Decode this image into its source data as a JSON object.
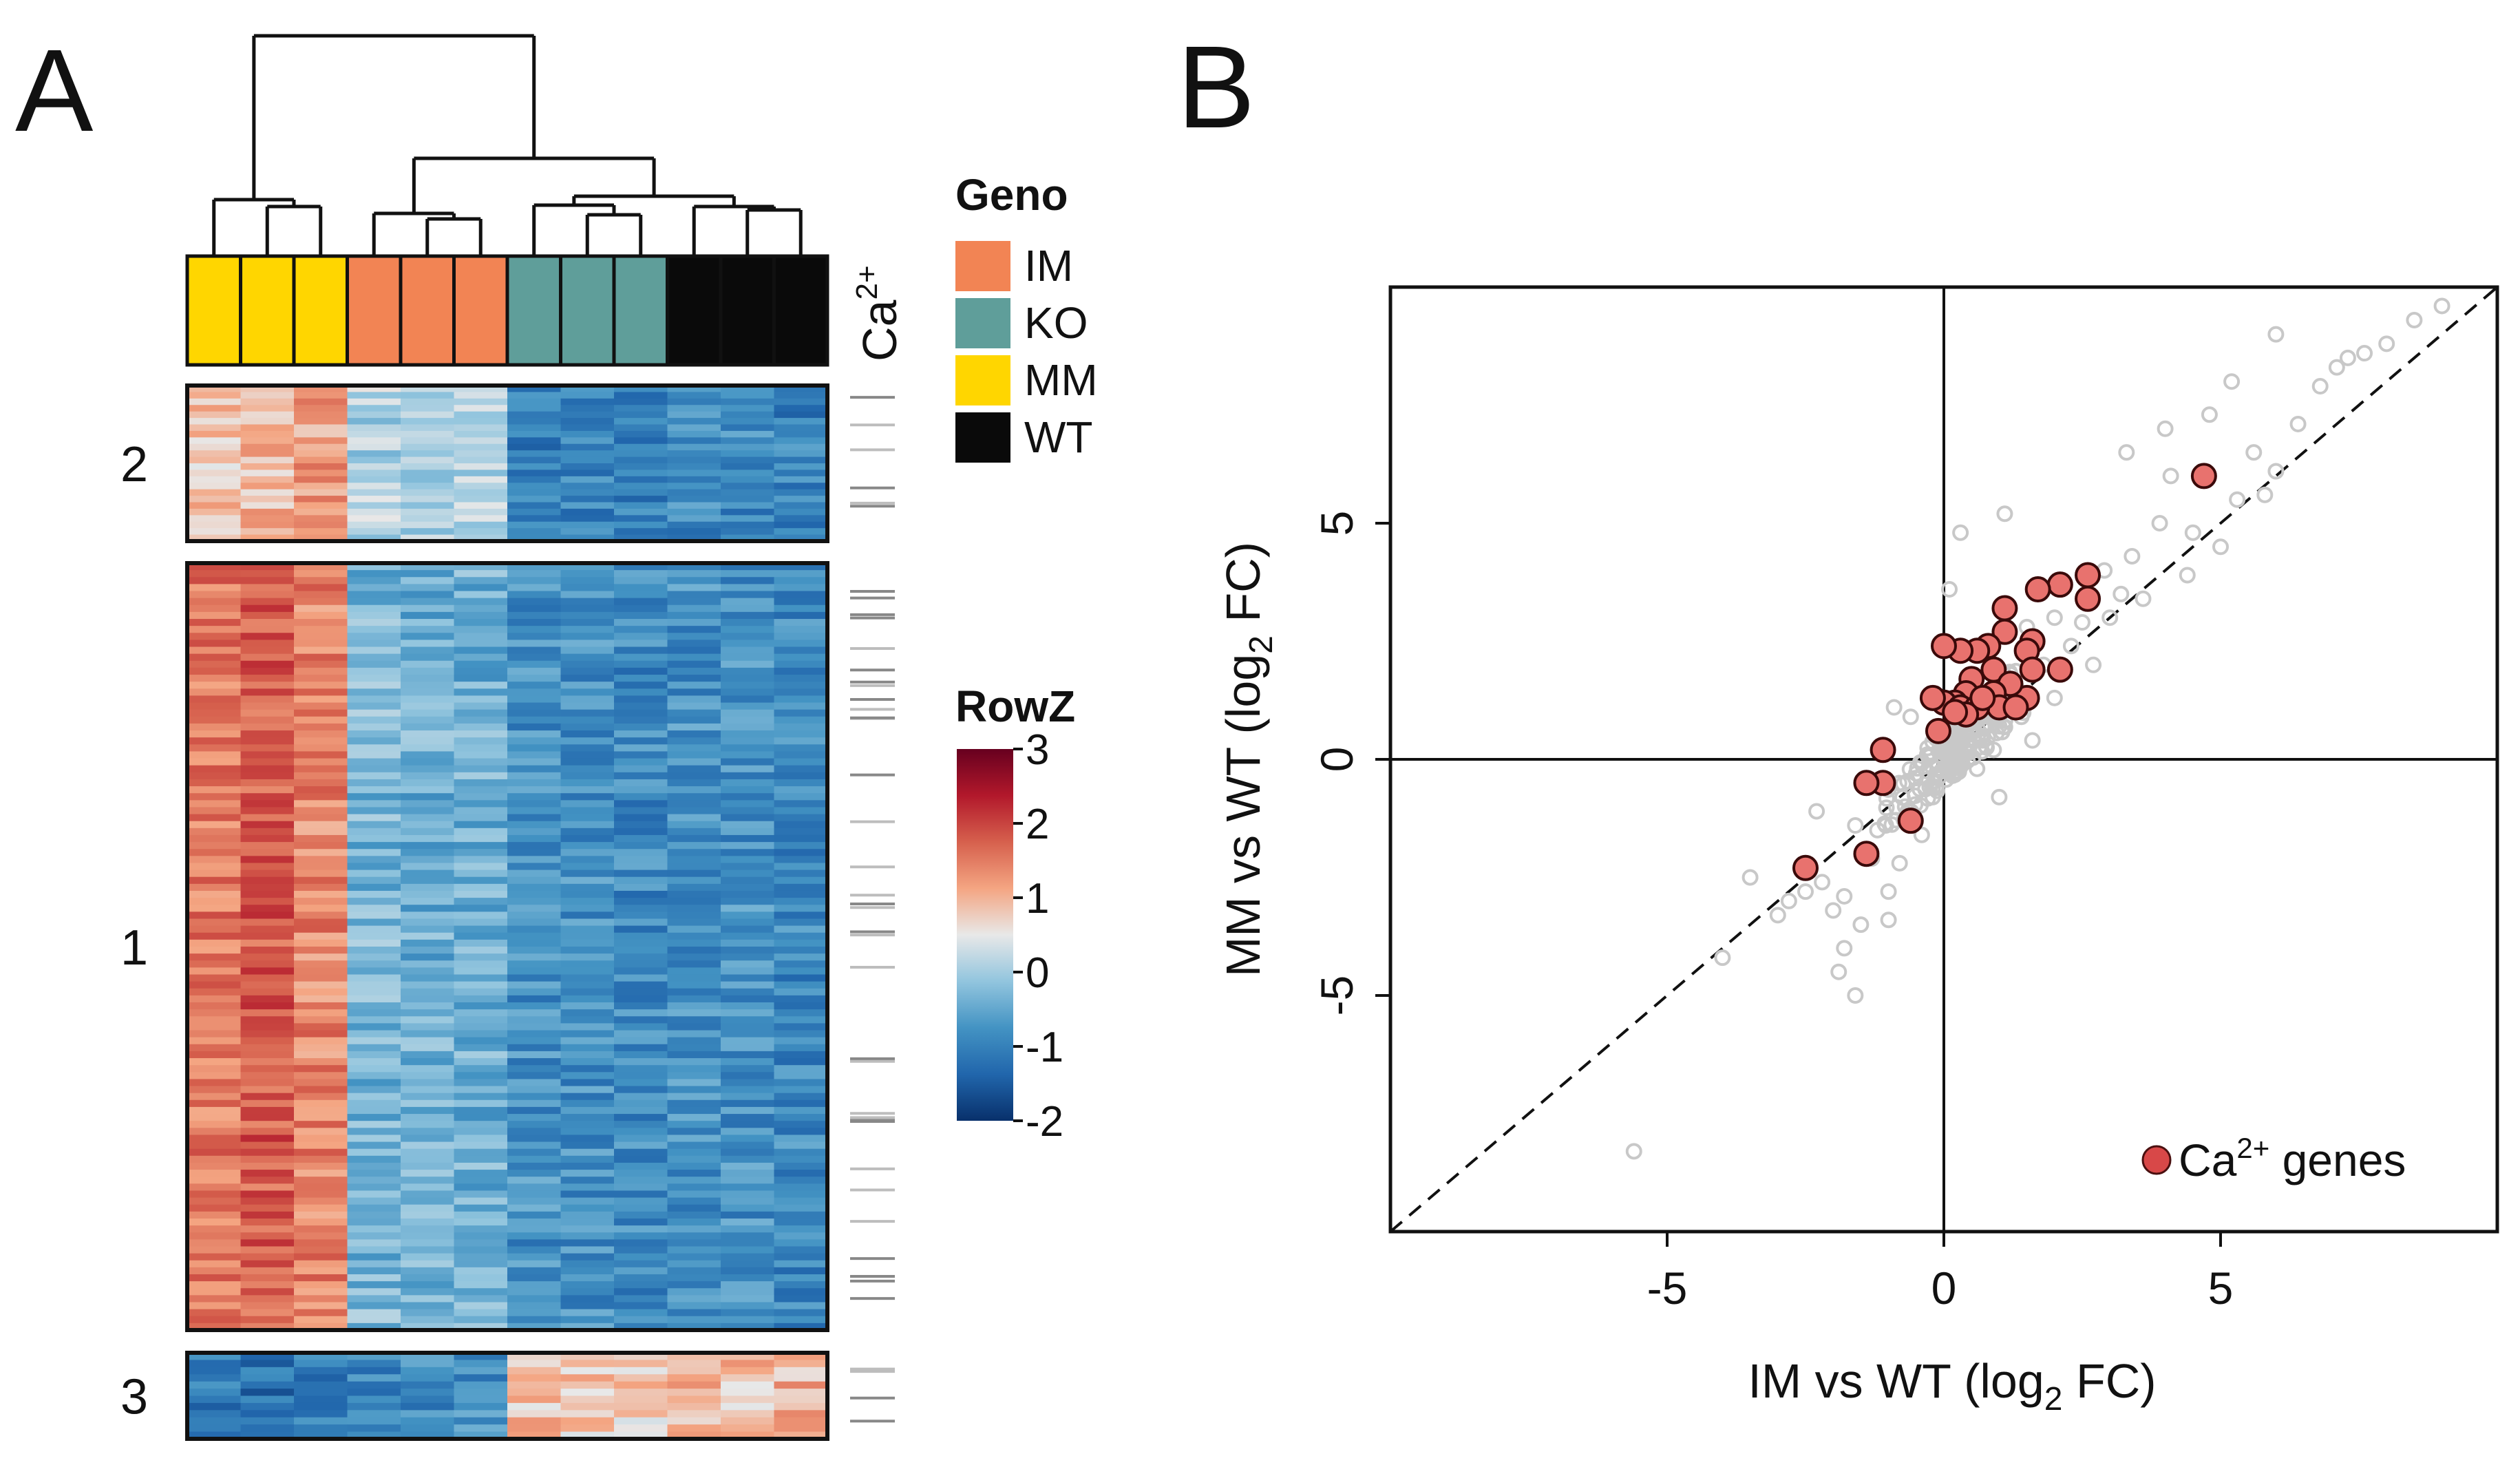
{
  "panels": {
    "a_label": "A",
    "b_label": "B"
  },
  "heatmap": {
    "samples": [
      {
        "group": "MM"
      },
      {
        "group": "MM"
      },
      {
        "group": "MM"
      },
      {
        "group": "IM"
      },
      {
        "group": "IM"
      },
      {
        "group": "IM"
      },
      {
        "group": "KO"
      },
      {
        "group": "KO"
      },
      {
        "group": "KO"
      },
      {
        "group": "WT"
      },
      {
        "group": "WT"
      },
      {
        "group": "WT"
      }
    ],
    "groups": [
      {
        "name": "IM",
        "color": "#F28454"
      },
      {
        "name": "KO",
        "color": "#5F9E9A"
      },
      {
        "name": "MM",
        "color": "#FFD600"
      },
      {
        "name": "WT",
        "color": "#0A0A0A"
      }
    ],
    "clusters": [
      {
        "label": "2",
        "rows": 24,
        "profile": [
          0.8,
          1.0,
          1.2,
          0.1,
          0.1,
          0.1,
          -1.0,
          -1.0,
          -1.0,
          -0.9,
          -0.9,
          -1.0
        ],
        "ca_genes": 6
      },
      {
        "label": "1",
        "rows": 110,
        "profile": [
          1.5,
          1.8,
          1.4,
          -0.3,
          -0.4,
          -0.4,
          -0.8,
          -0.8,
          -0.9,
          -0.8,
          -0.8,
          -0.9
        ],
        "ca_genes": 34
      },
      {
        "label": "3",
        "rows": 12,
        "profile": [
          -1.1,
          -1.2,
          -1.1,
          -0.9,
          -0.9,
          -0.8,
          0.9,
          0.8,
          0.8,
          1.0,
          0.9,
          1.0
        ],
        "ca_genes": 4
      }
    ],
    "ca_label": "Ca",
    "ca_superscript": "2+",
    "geno_legend_title": "Geno",
    "colorkey": {
      "title": "RowZ",
      "min": -2,
      "max": 3,
      "ticks": [
        "3",
        "2",
        "1",
        "0",
        "-1",
        "-2"
      ],
      "stops": [
        "#08306B",
        "#2166AC",
        "#4393C3",
        "#92C5DE",
        "#E8E8E8",
        "#F4A582",
        "#D6604D",
        "#B2182B",
        "#67001F"
      ]
    }
  },
  "scatter": {
    "xlabel_main": "IM vs WT (log",
    "xlabel_sub": "2",
    "xlabel_tail": " FC)",
    "ylabel_main": "MM vs WT (log",
    "ylabel_sub": "2",
    "ylabel_tail": " FC)",
    "legend_label": "Ca",
    "legend_sup": "2+",
    "legend_tail": " genes",
    "legend_color": "#E8726E",
    "background_color": "#C8C8C8"
  },
  "chart_data": {
    "type": "scatter",
    "xlabel": "IM vs WT (log2 FC)",
    "ylabel": "MM vs WT (log2 FC)",
    "xlim": [
      -10,
      10
    ],
    "ylim": [
      -10,
      10
    ],
    "x_ticks": [
      "-5",
      "0",
      "5"
    ],
    "y_ticks": [
      "5",
      "0",
      "-5"
    ],
    "reference_lines": [
      "x=0",
      "y=0",
      "y=x (dashed)"
    ],
    "legend": "bottom-right",
    "series": [
      {
        "name": "Ca2+ genes",
        "color": "#E8726E",
        "points": [
          [
            4.7,
            6.0
          ],
          [
            2.6,
            3.9
          ],
          [
            2.6,
            3.4
          ],
          [
            2.1,
            3.7
          ],
          [
            1.7,
            3.6
          ],
          [
            1.6,
            2.5
          ],
          [
            1.5,
            2.3
          ],
          [
            1.6,
            1.9
          ],
          [
            2.1,
            1.9
          ],
          [
            1.5,
            1.3
          ],
          [
            1.1,
            3.2
          ],
          [
            1.1,
            2.7
          ],
          [
            0.8,
            2.4
          ],
          [
            0.9,
            1.9
          ],
          [
            1.2,
            1.6
          ],
          [
            0.6,
            2.3
          ],
          [
            0.3,
            2.3
          ],
          [
            0.5,
            1.7
          ],
          [
            0.4,
            1.4
          ],
          [
            0.9,
            1.4
          ],
          [
            1.0,
            1.1
          ],
          [
            0.2,
            1.2
          ],
          [
            0.0,
            1.2
          ],
          [
            0.3,
            1.1
          ],
          [
            0.6,
            1.1
          ],
          [
            0.7,
            1.3
          ],
          [
            0.4,
            0.95
          ],
          [
            0.2,
            1.0
          ],
          [
            1.3,
            1.1
          ],
          [
            -0.1,
            0.6
          ],
          [
            -0.2,
            1.3
          ],
          [
            0.0,
            2.4
          ],
          [
            -1.1,
            0.2
          ],
          [
            -1.1,
            -0.5
          ],
          [
            -1.4,
            -0.5
          ],
          [
            -0.6,
            -1.3
          ],
          [
            -1.4,
            -2.0
          ],
          [
            -2.5,
            -2.3
          ]
        ]
      },
      {
        "name": "",
        "color": "#C8C8C8",
        "points": [
          [
            -5.6,
            -8.3
          ],
          [
            -4.0,
            -4.2
          ],
          [
            -3.5,
            -2.5
          ],
          [
            -3.0,
            -3.3
          ],
          [
            -2.8,
            -3.0
          ],
          [
            -2.5,
            -2.8
          ],
          [
            -2.2,
            -2.6
          ],
          [
            -2.0,
            -3.2
          ],
          [
            -1.9,
            -4.5
          ],
          [
            -1.8,
            -4.0
          ],
          [
            -1.6,
            -5.0
          ],
          [
            -1.5,
            -3.5
          ],
          [
            -1.3,
            -2.1
          ],
          [
            -1.2,
            -1.5
          ],
          [
            -1.0,
            -2.8
          ],
          [
            -0.8,
            -2.2
          ],
          [
            -0.7,
            -1.0
          ],
          [
            -0.5,
            -0.3
          ],
          [
            -0.4,
            -1.6
          ],
          [
            -0.3,
            0.1
          ],
          [
            -0.2,
            -0.8
          ],
          [
            -0.1,
            -0.4
          ],
          [
            0.0,
            0.0
          ],
          [
            0.1,
            0.5
          ],
          [
            0.2,
            -0.3
          ],
          [
            0.3,
            0.8
          ],
          [
            0.4,
            0.2
          ],
          [
            0.5,
            0.6
          ],
          [
            0.6,
            -0.2
          ],
          [
            0.7,
            0.4
          ],
          [
            0.8,
            0.9
          ],
          [
            0.9,
            0.2
          ],
          [
            1.0,
            0.7
          ],
          [
            1.2,
            1.8
          ],
          [
            1.4,
            0.9
          ],
          [
            1.5,
            2.8
          ],
          [
            1.8,
            2.0
          ],
          [
            2.0,
            3.0
          ],
          [
            2.3,
            2.4
          ],
          [
            2.5,
            2.9
          ],
          [
            2.9,
            4.0
          ],
          [
            3.2,
            3.5
          ],
          [
            3.4,
            4.3
          ],
          [
            3.6,
            3.4
          ],
          [
            3.9,
            5.0
          ],
          [
            4.1,
            6.0
          ],
          [
            4.5,
            4.8
          ],
          [
            4.8,
            7.3
          ],
          [
            5.0,
            4.5
          ],
          [
            5.3,
            5.5
          ],
          [
            5.6,
            6.5
          ],
          [
            6.0,
            6.1
          ],
          [
            6.4,
            7.1
          ],
          [
            6.8,
            7.9
          ],
          [
            7.1,
            8.3
          ],
          [
            7.3,
            8.5
          ],
          [
            7.6,
            8.6
          ],
          [
            8.0,
            8.8
          ],
          [
            8.5,
            9.3
          ],
          [
            9.0,
            9.6
          ],
          [
            6.0,
            9.0
          ],
          [
            5.2,
            8.0
          ],
          [
            4.0,
            7.0
          ],
          [
            3.3,
            6.5
          ],
          [
            1.0,
            -0.8
          ],
          [
            -0.6,
            0.9
          ],
          [
            -1.6,
            -1.4
          ],
          [
            -1.0,
            -3.4
          ],
          [
            0.3,
            4.8
          ],
          [
            1.1,
            5.2
          ],
          [
            2.0,
            1.3
          ],
          [
            2.7,
            2.0
          ],
          [
            1.6,
            0.4
          ],
          [
            -2.3,
            -1.1
          ],
          [
            -1.8,
            -2.9
          ],
          [
            -0.9,
            1.1
          ],
          [
            0.1,
            3.6
          ],
          [
            3.0,
            3.0
          ],
          [
            4.4,
            3.9
          ],
          [
            5.8,
            5.6
          ]
        ]
      }
    ]
  }
}
